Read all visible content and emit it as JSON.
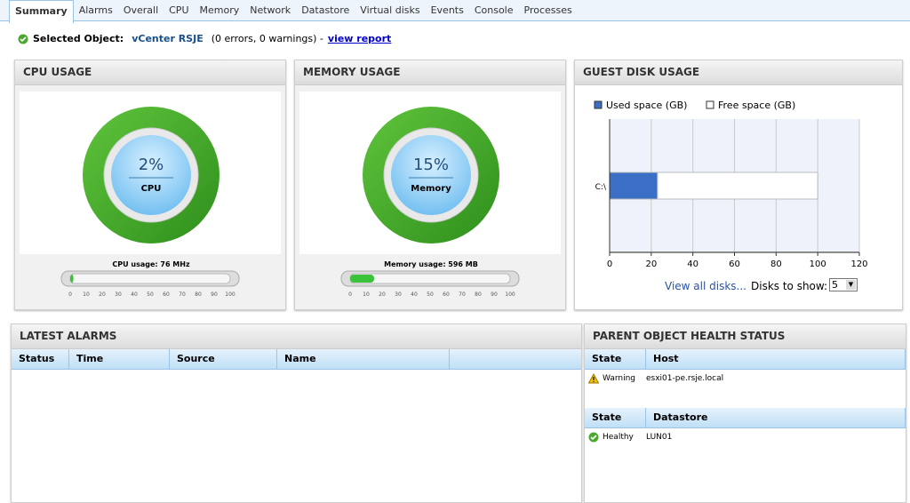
{
  "tabs": {
    "items": [
      "Summary",
      "Alarms",
      "Overall",
      "CPU",
      "Memory",
      "Network",
      "Datastore",
      "Virtual disks",
      "Events",
      "Console",
      "Processes"
    ],
    "selected": 0
  },
  "selected_object": {
    "label": "Selected Object:",
    "name": "vCenter RSJE",
    "status": "(0 errors, 0 warnings) -",
    "link": "view report"
  },
  "cpu": {
    "title": "CPU USAGE",
    "percent_label": "2%",
    "gauge_label": "CPU",
    "usage": "CPU usage: 76 MHz",
    "meter": {
      "value": 2,
      "ticks": [
        0,
        10,
        20,
        30,
        40,
        50,
        60,
        70,
        80,
        90,
        100
      ]
    }
  },
  "memory": {
    "title": "MEMORY USAGE",
    "percent_label": "15%",
    "gauge_label": "Memory",
    "usage": "Memory usage: 596 MB",
    "meter": {
      "value": 15,
      "ticks": [
        0,
        10,
        20,
        30,
        40,
        50,
        60,
        70,
        80,
        90,
        100
      ]
    }
  },
  "guest_disk": {
    "title": "GUEST DISK USAGE",
    "chart": {
      "type": "bar",
      "categories": [
        "C:\\"
      ],
      "series": [
        {
          "name": "Used space (GB)",
          "color": "#3b6fc6",
          "values": [
            23
          ]
        },
        {
          "name": "Free space (GB)",
          "color": "#ffffff",
          "values": [
            77
          ]
        }
      ],
      "xlim": [
        0,
        120
      ],
      "xticks": [
        0,
        20,
        40,
        60,
        80,
        100,
        120
      ],
      "grid": true
    },
    "link": "View all disks...",
    "disks_label": "Disks to show:",
    "disks_value": "5"
  },
  "alarms": {
    "title": "LATEST ALARMS",
    "columns": [
      "Status",
      "Time",
      "Source",
      "Name"
    ]
  },
  "health": {
    "title": "PARENT OBJECT HEALTH STATUS",
    "host_table": {
      "columns": [
        "State",
        "Host"
      ],
      "rows": [
        [
          "Warning",
          "esxi01-pe.rsje.local"
        ]
      ]
    },
    "datastore_table": {
      "columns": [
        "State",
        "Datastore"
      ],
      "rows": [
        [
          "Healthy",
          "LUN01"
        ]
      ]
    }
  }
}
